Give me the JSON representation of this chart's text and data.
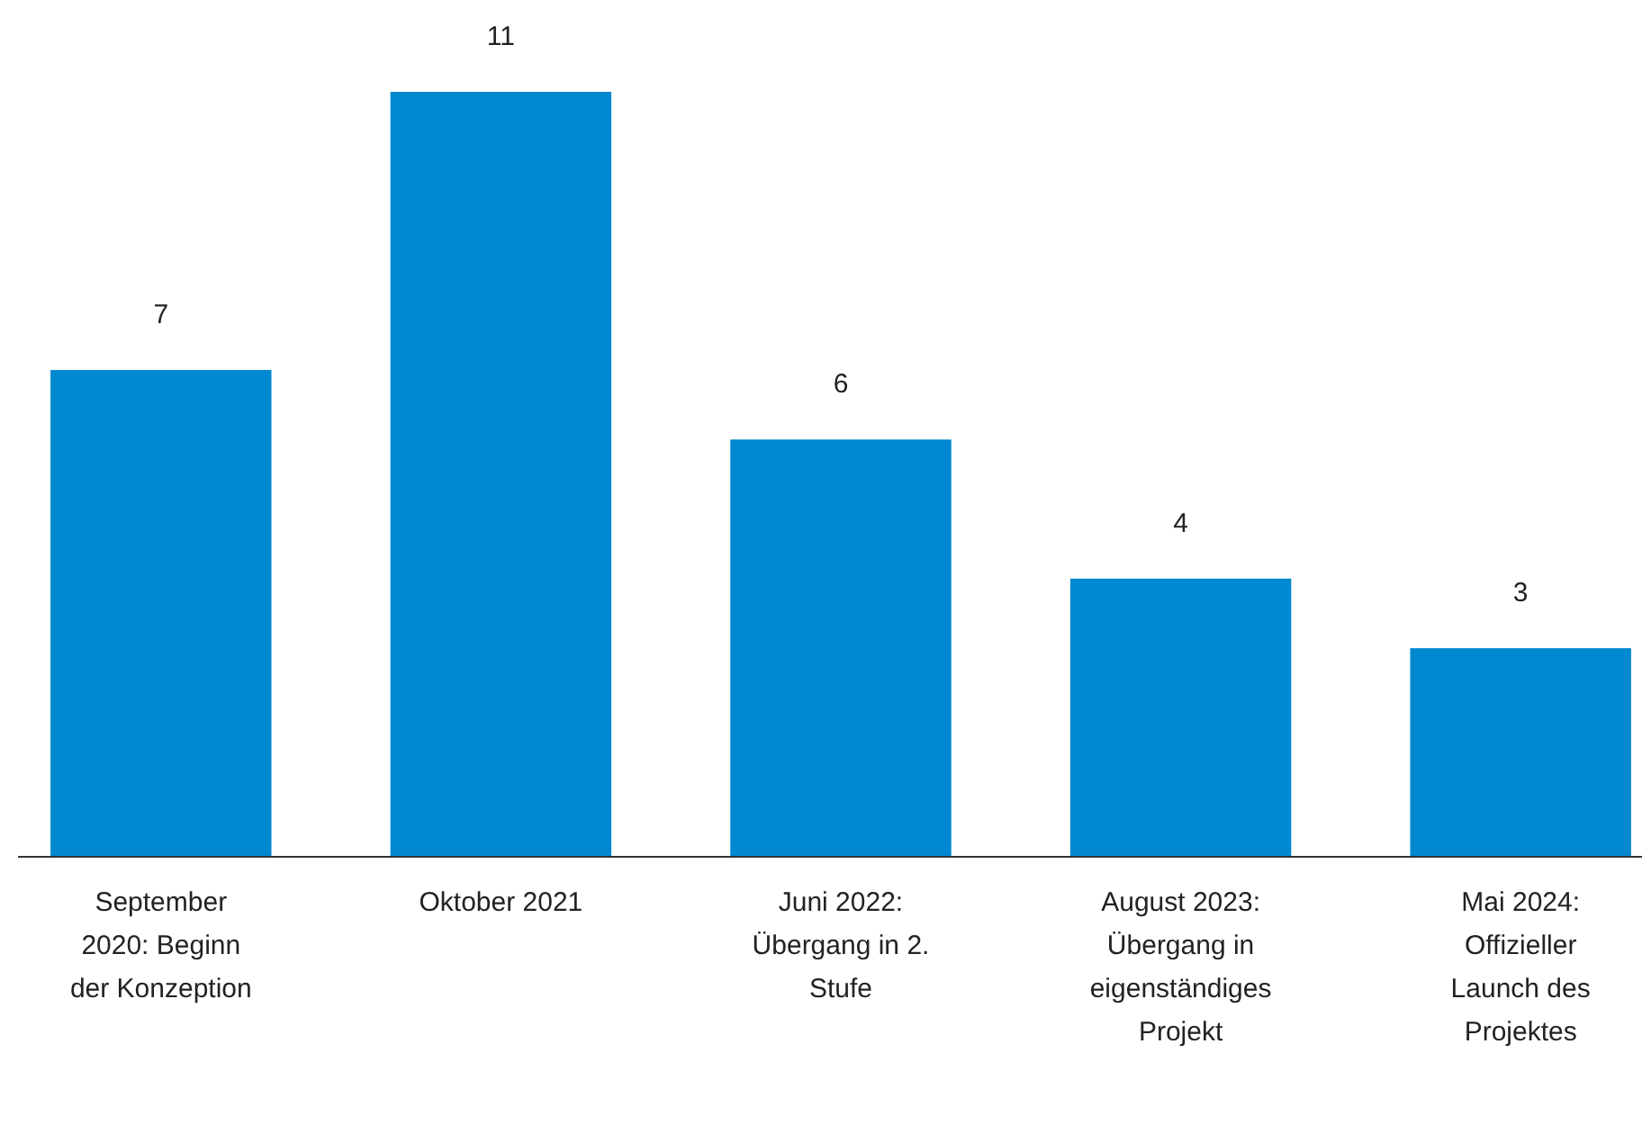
{
  "chart_data": {
    "type": "bar",
    "categories": [
      "September 2020: Beginn der Konzeption",
      "Oktober 2021",
      "Juni 2022: Übergang in 2. Stufe",
      "August 2023: Übergang in eigenständiges Projekt",
      "Mai 2024: Offizieller Launch des Projektes"
    ],
    "values": [
      7,
      11,
      6,
      4,
      3
    ],
    "color": "#0088d1",
    "data_labels": true
  }
}
